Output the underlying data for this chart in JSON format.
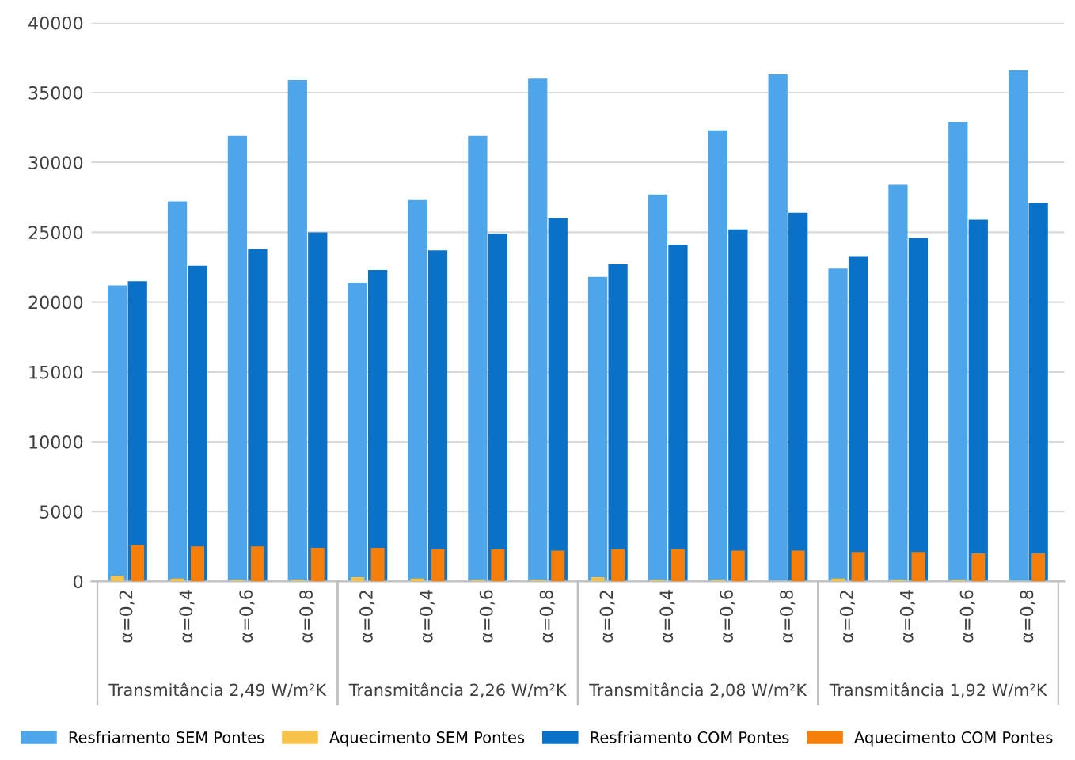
{
  "chart_data": {
    "type": "bar",
    "categories": [
      "α=0,2",
      "α=0,4",
      "α=0,6",
      "α=0,8",
      "α=0,2",
      "α=0,4",
      "α=0,6",
      "α=0,8",
      "α=0,2",
      "α=0,4",
      "α=0,6",
      "α=0,8",
      "α=0,2",
      "α=0,4",
      "α=0,6",
      "α=0,8"
    ],
    "annotations": [
      "Transmitância 2,49 W/m²K",
      "Transmitância 2,26 W/m²K",
      "Transmitância 2,08 W/m²K",
      "Transmitância 1,92 W/m²K"
    ],
    "series": [
      {
        "name": "Resfriamento SEM Pontes",
        "color": "#4ea6ea",
        "values": [
          21200,
          27200,
          31900,
          35900,
          21400,
          27300,
          31900,
          36000,
          21800,
          27700,
          32300,
          36300,
          22400,
          28400,
          32900,
          36600
        ]
      },
      {
        "name": "Aquecimento SEM Pontes",
        "color": "#f7c24a",
        "values": [
          400,
          200,
          100,
          100,
          300,
          200,
          100,
          100,
          300,
          100,
          100,
          0,
          200,
          100,
          100,
          0
        ]
      },
      {
        "name": "Resfriamento COM Pontes",
        "color": "#0a72c6",
        "values": [
          21500,
          22600,
          23800,
          25000,
          22300,
          23700,
          24900,
          26000,
          22700,
          24100,
          25200,
          26400,
          23300,
          24600,
          25900,
          27100
        ]
      },
      {
        "name": "Aquecimento COM Pontes",
        "color": "#f57f0a",
        "values": [
          2600,
          2500,
          2500,
          2400,
          2400,
          2300,
          2300,
          2200,
          2300,
          2300,
          2200,
          2200,
          2100,
          2100,
          2000,
          2000
        ]
      }
    ],
    "ylim": [
      0,
      40000
    ],
    "yticks": [
      0,
      5000,
      10000,
      15000,
      20000,
      25000,
      30000,
      35000,
      40000
    ],
    "grid": "y",
    "legend": "bottom"
  }
}
